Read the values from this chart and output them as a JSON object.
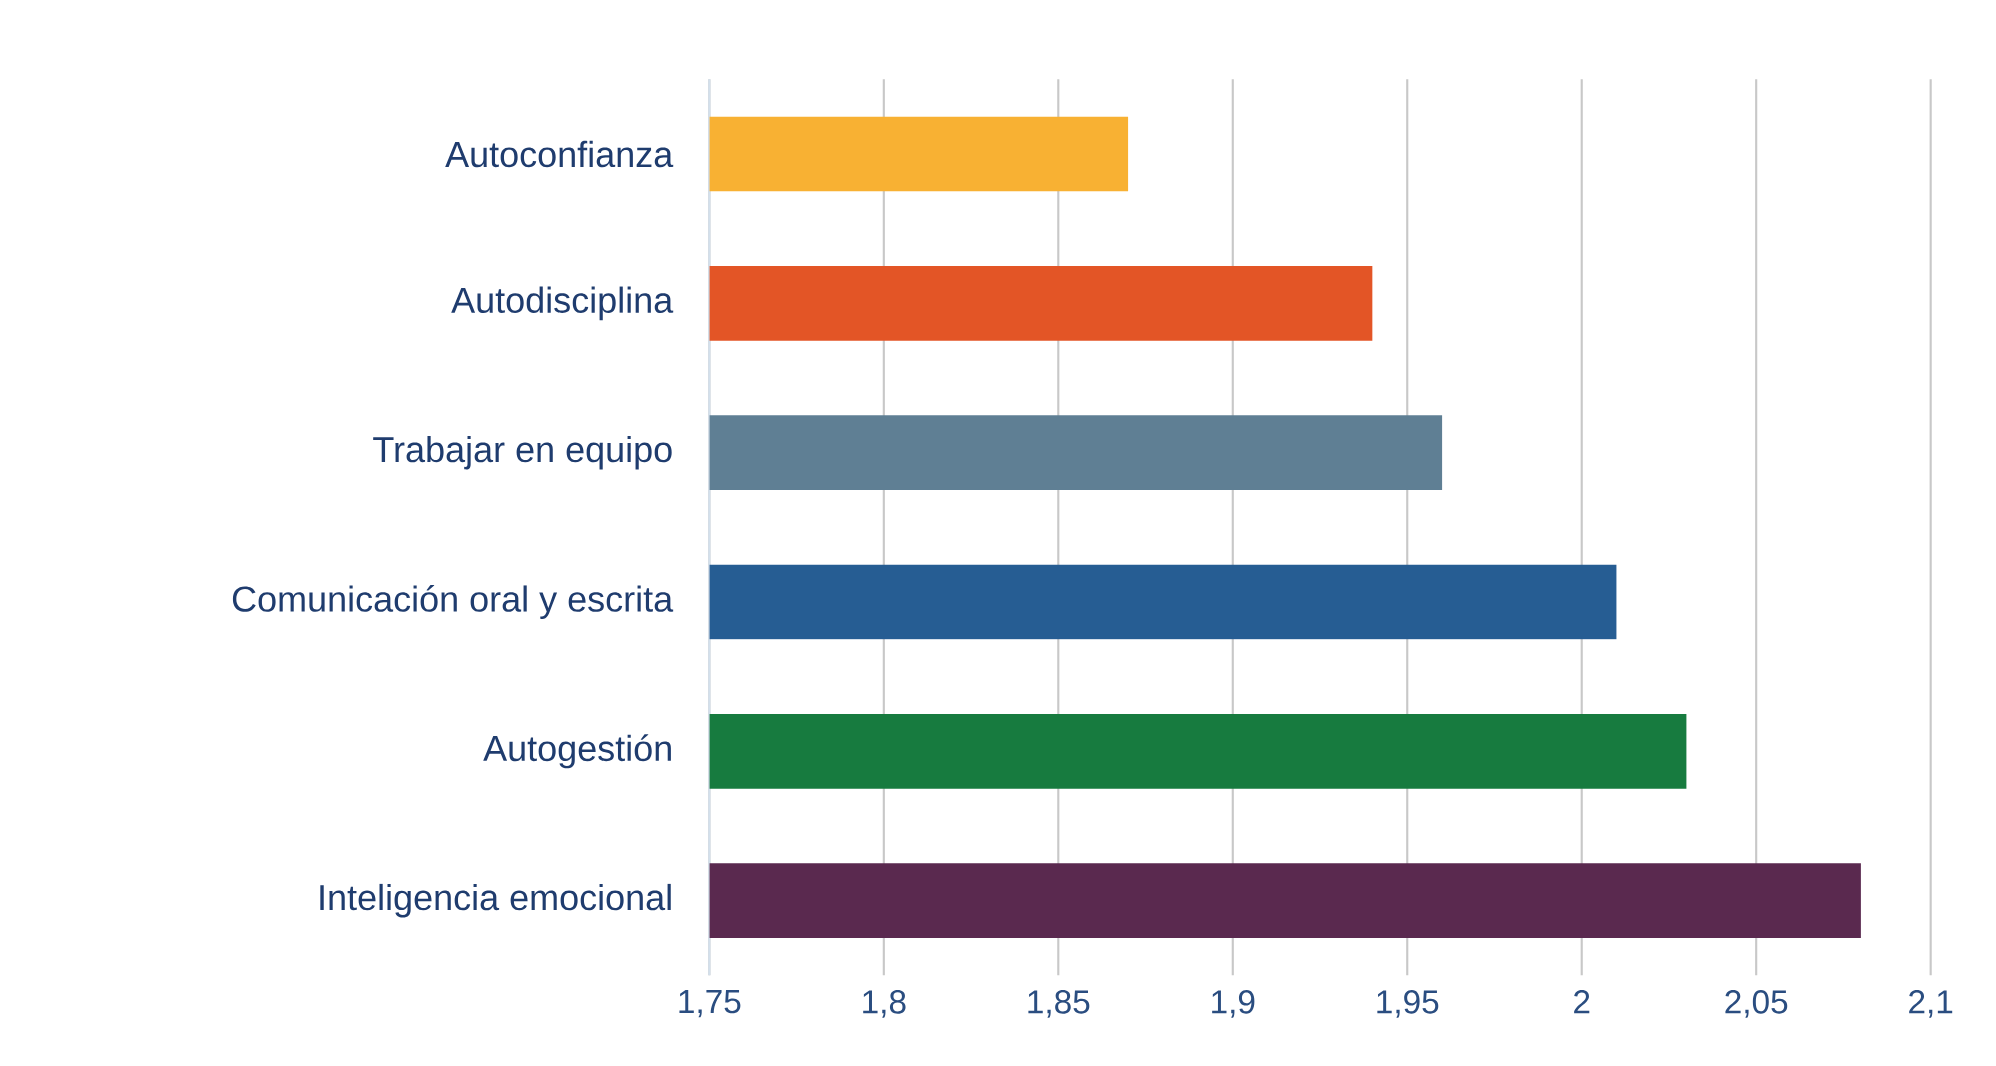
{
  "chart_data": {
    "type": "bar",
    "orientation": "horizontal",
    "categories": [
      "Autoconfianza",
      "Autodisciplina",
      "Trabajar en equipo",
      "Comunicación oral y escrita",
      "Autogestión",
      "Inteligencia emocional"
    ],
    "values": [
      1.87,
      1.94,
      1.96,
      2.01,
      2.03,
      2.08
    ],
    "colors": [
      "#f8b133",
      "#e35526",
      "#5f7f94",
      "#265d93",
      "#177b3f",
      "#5a294f"
    ],
    "xlim": [
      1.75,
      2.1
    ],
    "xticks": [
      {
        "value": 1.75,
        "label": "1,75"
      },
      {
        "value": 1.8,
        "label": "1,8"
      },
      {
        "value": 1.85,
        "label": "1,85"
      },
      {
        "value": 1.9,
        "label": "1,9"
      },
      {
        "value": 1.95,
        "label": "1,95"
      },
      2,
      {
        "value": 2.05,
        "label": "2,05"
      },
      {
        "value": 2.1,
        "label": "2,1"
      }
    ],
    "grid": "x"
  }
}
